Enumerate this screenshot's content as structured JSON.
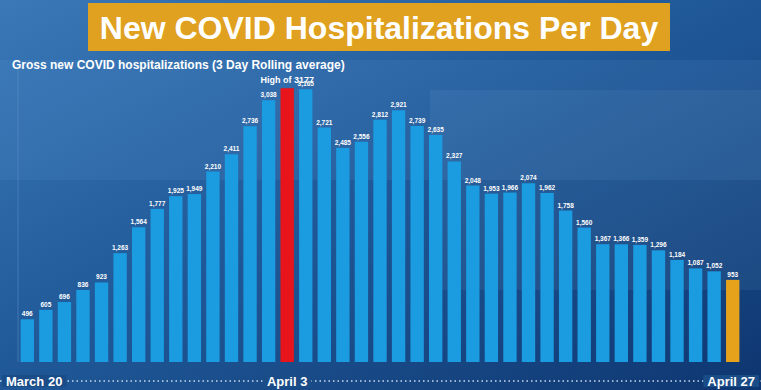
{
  "chart_data": {
    "type": "bar",
    "title": "New COVID Hospitalizations Per Day",
    "subtitle": "Gross new COVID hospitalizations  (3 Day Rolling average)",
    "annotation": "High of 3177",
    "categories": [
      "March 20",
      null,
      null,
      null,
      null,
      null,
      null,
      null,
      null,
      null,
      null,
      null,
      null,
      null,
      "April 3",
      null,
      null,
      null,
      null,
      null,
      null,
      null,
      null,
      null,
      null,
      null,
      null,
      null,
      null,
      null,
      null,
      null,
      null,
      null,
      null,
      null,
      null,
      null,
      "April 27"
    ],
    "values": [
      496,
      605,
      696,
      836,
      923,
      1263,
      1564,
      1777,
      1925,
      1949,
      2210,
      2411,
      2736,
      3038,
      3177,
      3165,
      2721,
      2485,
      2556,
      2812,
      2921,
      2739,
      2635,
      2327,
      2048,
      1953,
      1966,
      2074,
      1962,
      1758,
      1560,
      1367,
      1366,
      1359,
      1296,
      1184,
      1087,
      1052,
      953
    ],
    "value_labels": [
      "496",
      "605",
      "696",
      "836",
      "923",
      "1,263",
      "1,564",
      "1,777",
      "1,925",
      "1,949",
      "2,210",
      "2,411",
      "2,736",
      "3,038",
      null,
      "3,165",
      "2,721",
      "2,485",
      "2,556",
      "2,812",
      "2,921",
      "2,739",
      "2,635",
      "2,327",
      "2,048",
      "1,953",
      "1,966",
      "2,074",
      "1,962",
      "1,758",
      "1,560",
      "1,367",
      "1,366",
      "1,359",
      "1,296",
      "1,184",
      "1,087",
      "1,052",
      "953"
    ],
    "colors": [
      "#1b9be0",
      "#1b9be0",
      "#1b9be0",
      "#1b9be0",
      "#1b9be0",
      "#1b9be0",
      "#1b9be0",
      "#1b9be0",
      "#1b9be0",
      "#1b9be0",
      "#1b9be0",
      "#1b9be0",
      "#1b9be0",
      "#1b9be0",
      "#e8141c",
      "#1b9be0",
      "#1b9be0",
      "#1b9be0",
      "#1b9be0",
      "#1b9be0",
      "#1b9be0",
      "#1b9be0",
      "#1b9be0",
      "#1b9be0",
      "#1b9be0",
      "#1b9be0",
      "#1b9be0",
      "#1b9be0",
      "#1b9be0",
      "#1b9be0",
      "#1b9be0",
      "#1b9be0",
      "#1b9be0",
      "#1b9be0",
      "#1b9be0",
      "#1b9be0",
      "#1b9be0",
      "#1b9be0",
      "#e6a21a"
    ],
    "ylim": [
      0,
      3400
    ],
    "data_labels": true,
    "tick_labels": "x",
    "grid": false
  }
}
